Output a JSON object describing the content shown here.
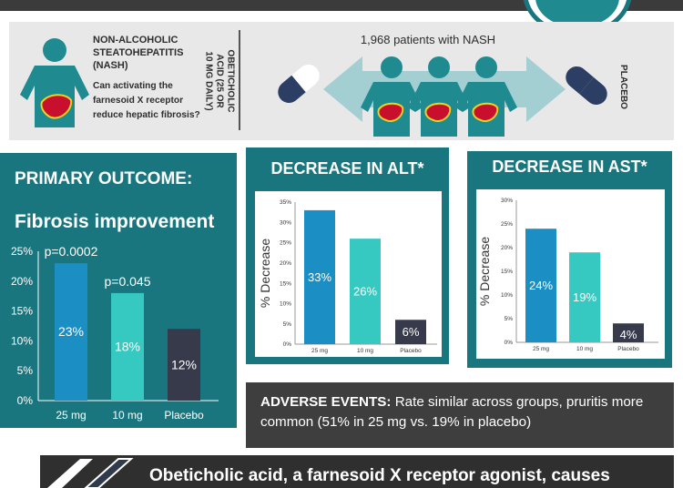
{
  "header": {
    "condition_title": "NON-ALCOHOLIC STEATOHEPATITIS (NASH)",
    "question": "Can activating the farnesoid X receptor reduce hepatic fibrosis?",
    "treatment_label": "OBETICHOLIC ACID (25 OR 10 MG DAILY)",
    "patients_label": "1,968 patients with NASH",
    "placebo_label": "PLACEBO"
  },
  "primary": {
    "title": "PRIMARY OUTCOME:",
    "subtitle": "Fibrosis improvement"
  },
  "alt": {
    "title": "DECREASE IN ALT*"
  },
  "ast": {
    "title": "DECREASE IN AST*"
  },
  "adverse": {
    "label": "ADVERSE EVENTS:",
    "text": " Rate similar across groups, pruritis more common (51% in 25 mg vs. 19% in placebo)"
  },
  "footer": {
    "text": "Obeticholic acid, a farnesoid X receptor agonist, causes"
  },
  "colors": {
    "teal_panel": "#19767f",
    "bar_25mg": "#1b8fc4",
    "bar_10mg": "#35c9c1",
    "bar_placebo": "#363a4a",
    "person": "#1f8a8f",
    "arrow": "#a3cfd3",
    "dark_box": "#3e3e3e"
  },
  "icons": [
    "person-icon",
    "liver-icon",
    "pill-icon",
    "double-arrow-icon"
  ],
  "chart_data": [
    {
      "type": "bar",
      "title": "Fibrosis improvement",
      "categories": [
        "25 mg",
        "10 mg",
        "Placebo"
      ],
      "values": [
        23,
        18,
        12
      ],
      "value_labels": [
        "23%",
        "18%",
        "12%"
      ],
      "annotations": [
        "p=0.0002",
        "p=0.045",
        ""
      ],
      "yticks": [
        "0%",
        "5%",
        "10%",
        "15%",
        "20%",
        "25%"
      ],
      "ylim": [
        0,
        25
      ],
      "grid": false
    },
    {
      "type": "bar",
      "title": "DECREASE IN ALT*",
      "ylabel": "% Decrease",
      "categories": [
        "25 mg",
        "10 mg",
        "Placebo"
      ],
      "values": [
        33,
        26,
        6
      ],
      "value_labels": [
        "33%",
        "26%",
        "6%"
      ],
      "yticks": [
        "0%",
        "5%",
        "10%",
        "15%",
        "20%",
        "25%",
        "30%",
        "35%"
      ],
      "ylim": [
        0,
        35
      ],
      "grid": false
    },
    {
      "type": "bar",
      "title": "DECREASE IN AST*",
      "ylabel": "% Decrease",
      "categories": [
        "25 mg",
        "10 mg",
        "Placebo"
      ],
      "values": [
        24,
        19,
        4
      ],
      "value_labels": [
        "24%",
        "19%",
        "4%"
      ],
      "yticks": [
        "0%",
        "5%",
        "10%",
        "15%",
        "20%",
        "25%",
        "30%"
      ],
      "ylim": [
        0,
        30
      ],
      "grid": false
    }
  ]
}
